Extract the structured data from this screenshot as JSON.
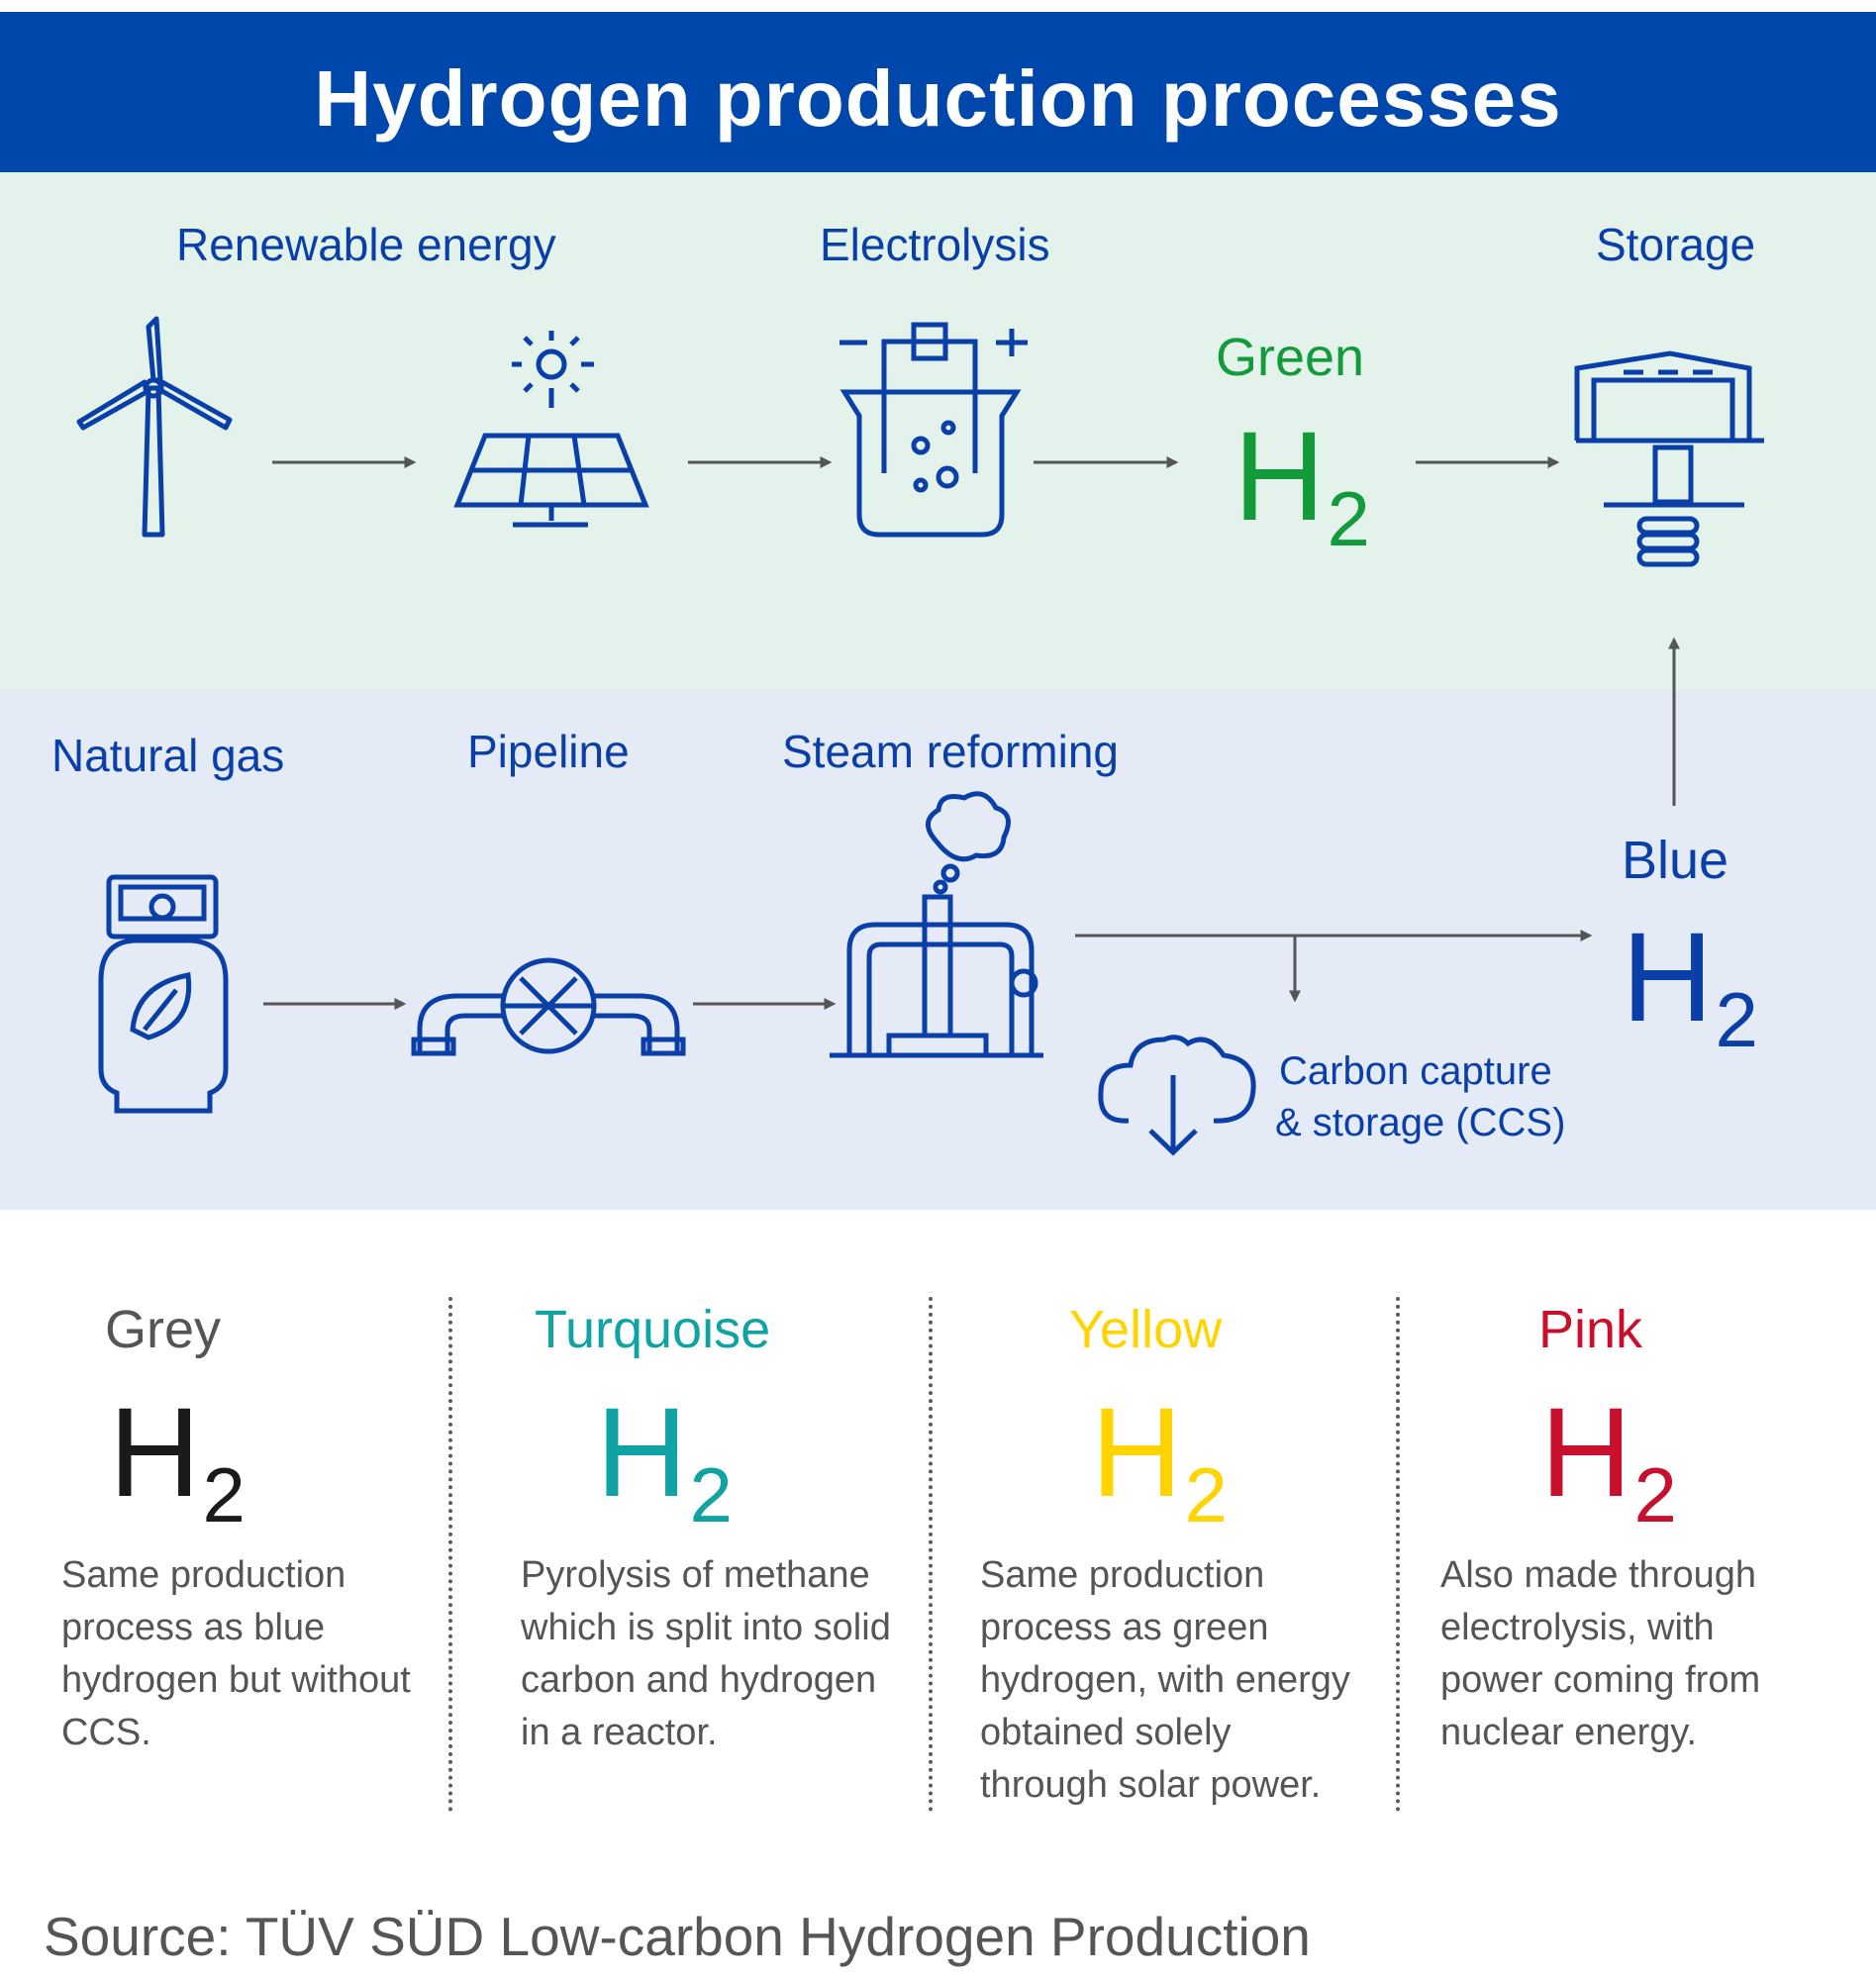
{
  "title": "Hydrogen production processes",
  "green_row": {
    "labels": {
      "renewable": "Renewable energy",
      "electrolysis": "Electrolysis",
      "storage": "Storage"
    },
    "color_word": "Green",
    "color": "#139A3A"
  },
  "blue_row": {
    "labels": {
      "natural_gas": "Natural gas",
      "pipeline": "Pipeline",
      "steam": "Steam reforming"
    },
    "ccs_line1": "Carbon capture",
    "ccs_line2": "& storage (CCS)",
    "color_word": "Blue",
    "color": "#0A3FA8"
  },
  "h2": {
    "main": "H",
    "sub": "2"
  },
  "types": [
    {
      "name": "Grey",
      "color": "#1a1a1a",
      "name_color": "#555555",
      "desc": [
        "Same production",
        "process as blue",
        "hydrogen but without",
        "CCS."
      ]
    },
    {
      "name": "Turquoise",
      "color": "#0FA3A3",
      "name_color": "#0FA3A3",
      "desc": [
        "Pyrolysis of methane",
        "which is split into solid",
        "carbon and hydrogen",
        "in a reactor."
      ]
    },
    {
      "name": "Yellow",
      "color": "#FFD400",
      "name_color": "#FFD400",
      "desc": [
        "Same production",
        "process as green",
        "hydrogen, with energy",
        "obtained solely",
        "through solar power."
      ]
    },
    {
      "name": "Pink",
      "color": "#C8102E",
      "name_color": "#C8102E",
      "desc": [
        "Also made through",
        "electrolysis, with",
        "power coming from",
        "nuclear energy."
      ]
    }
  ],
  "icons": {
    "wind": "wind-turbine-icon",
    "solar": "solar-panel-icon",
    "electrolysis": "electrolysis-cell-icon",
    "storage": "storage-facility-icon",
    "gas": "gas-cylinder-icon",
    "pipeline": "pipeline-valve-icon",
    "steam": "steam-reformer-icon",
    "ccs": "cloud-download-icon"
  },
  "source": "Source: TÜV SÜD Low-carbon Hydrogen Production"
}
